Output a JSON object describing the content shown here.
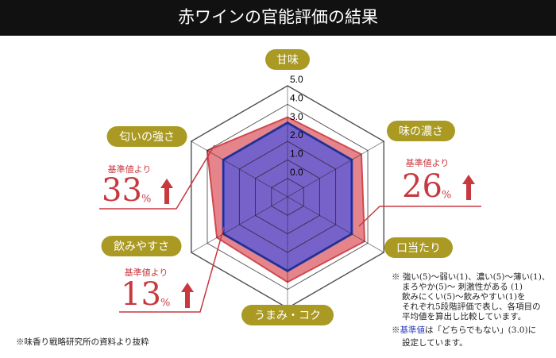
{
  "chart_data": {
    "type": "radar",
    "title": "赤ワインの官能評価の結果",
    "categories": [
      "甘味",
      "味の濃さ",
      "口当たり",
      "うまみ・コク",
      "飲みやすさ",
      "匂いの強さ"
    ],
    "rlim": [
      -1,
      5
    ],
    "rticks": [
      {
        "value": 0,
        "label": "0.0"
      },
      {
        "value": 1,
        "label": "1.0"
      },
      {
        "value": 2,
        "label": "2.0"
      },
      {
        "value": 3,
        "label": "3.0"
      },
      {
        "value": 4,
        "label": "4.0"
      },
      {
        "value": 5,
        "label": "5.0"
      }
    ],
    "series": [
      {
        "color": "#e07077",
        "edge": "#d0484f",
        "values": [
          3.3,
          3.6,
          3.8,
          3.6,
          3.4,
          4.0
        ]
      },
      {
        "color": "#6a5ed0",
        "edge": "#2a3cc0",
        "values": [
          3,
          3,
          3,
          3,
          3,
          3
        ]
      }
    ],
    "callouts": [
      {
        "label": "基準値より",
        "value": 33,
        "unit": "%"
      },
      {
        "label": "基準値より",
        "value": 26,
        "unit": "%"
      },
      {
        "label": "基準値より",
        "value": 13,
        "unit": "%"
      }
    ],
    "notes": [
      "※ 強い(5)～弱い(1)、濃い(5)～薄い(1)、",
      "まろやか(5)～ 刺激性がある (1)",
      "飲みにくい(5)～飲みやすい(1)を",
      "それぞれ5段階評価で表し、各項目の",
      "平均値を算出し比較しています。"
    ],
    "note2": [
      "※",
      "基準値",
      "は「どちらでもない」(3.0)に",
      "設定しています。"
    ],
    "source": "※味香り戦略研究所の資料より抜粋"
  }
}
